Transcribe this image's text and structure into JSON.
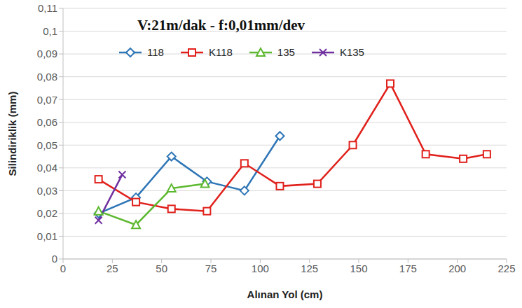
{
  "chart_data": {
    "type": "line",
    "title": "V:21m/dak - f:0,01mm/dev",
    "x_label": "Alınan Yol (cm)",
    "y_label": "Silindiriklik (mm)",
    "xlim": [
      0,
      225
    ],
    "xticks": [
      0,
      25,
      50,
      75,
      100,
      125,
      150,
      175,
      200,
      225
    ],
    "ylim": [
      0,
      0.11
    ],
    "yticks": [
      0,
      {
        "value": 0.01,
        "label": "0,01"
      },
      {
        "value": 0.02,
        "label": "0,02"
      },
      {
        "value": 0.03,
        "label": "0,03"
      },
      {
        "value": 0.04,
        "label": "0,04"
      },
      {
        "value": 0.05,
        "label": "0,05"
      },
      {
        "value": 0.06,
        "label": "0,06"
      },
      {
        "value": 0.07,
        "label": "0,07"
      },
      {
        "value": 0.08,
        "label": "0,08"
      },
      {
        "value": 0.09,
        "label": "0,09"
      },
      {
        "value": 0.1,
        "label": "0,1"
      },
      {
        "value": 0.11,
        "label": "0,11"
      }
    ],
    "grid": true,
    "legend": "top",
    "series": [
      {
        "name": "118",
        "color": "#2e75b6",
        "marker": "diamond",
        "x": [
          18,
          37,
          55,
          73,
          92,
          110
        ],
        "values": [
          0.02,
          0.027,
          0.045,
          0.034,
          0.03,
          0.054
        ]
      },
      {
        "name": "K118",
        "color": "#e0201b",
        "marker": "square",
        "x": [
          18,
          37,
          55,
          73,
          92,
          110,
          129,
          147,
          166,
          184,
          203,
          215
        ],
        "values": [
          0.035,
          0.025,
          0.022,
          0.021,
          0.042,
          0.032,
          0.033,
          0.05,
          0.077,
          0.046,
          0.044,
          0.046
        ]
      },
      {
        "name": "135",
        "color": "#5cb82e",
        "marker": "triangle",
        "x": [
          18,
          37,
          55,
          72
        ],
        "values": [
          0.021,
          0.015,
          0.031,
          0.033
        ]
      },
      {
        "name": "K135",
        "color": "#7030a0",
        "marker": "x",
        "x": [
          18,
          30
        ],
        "values": [
          0.017,
          0.037
        ]
      }
    ]
  }
}
